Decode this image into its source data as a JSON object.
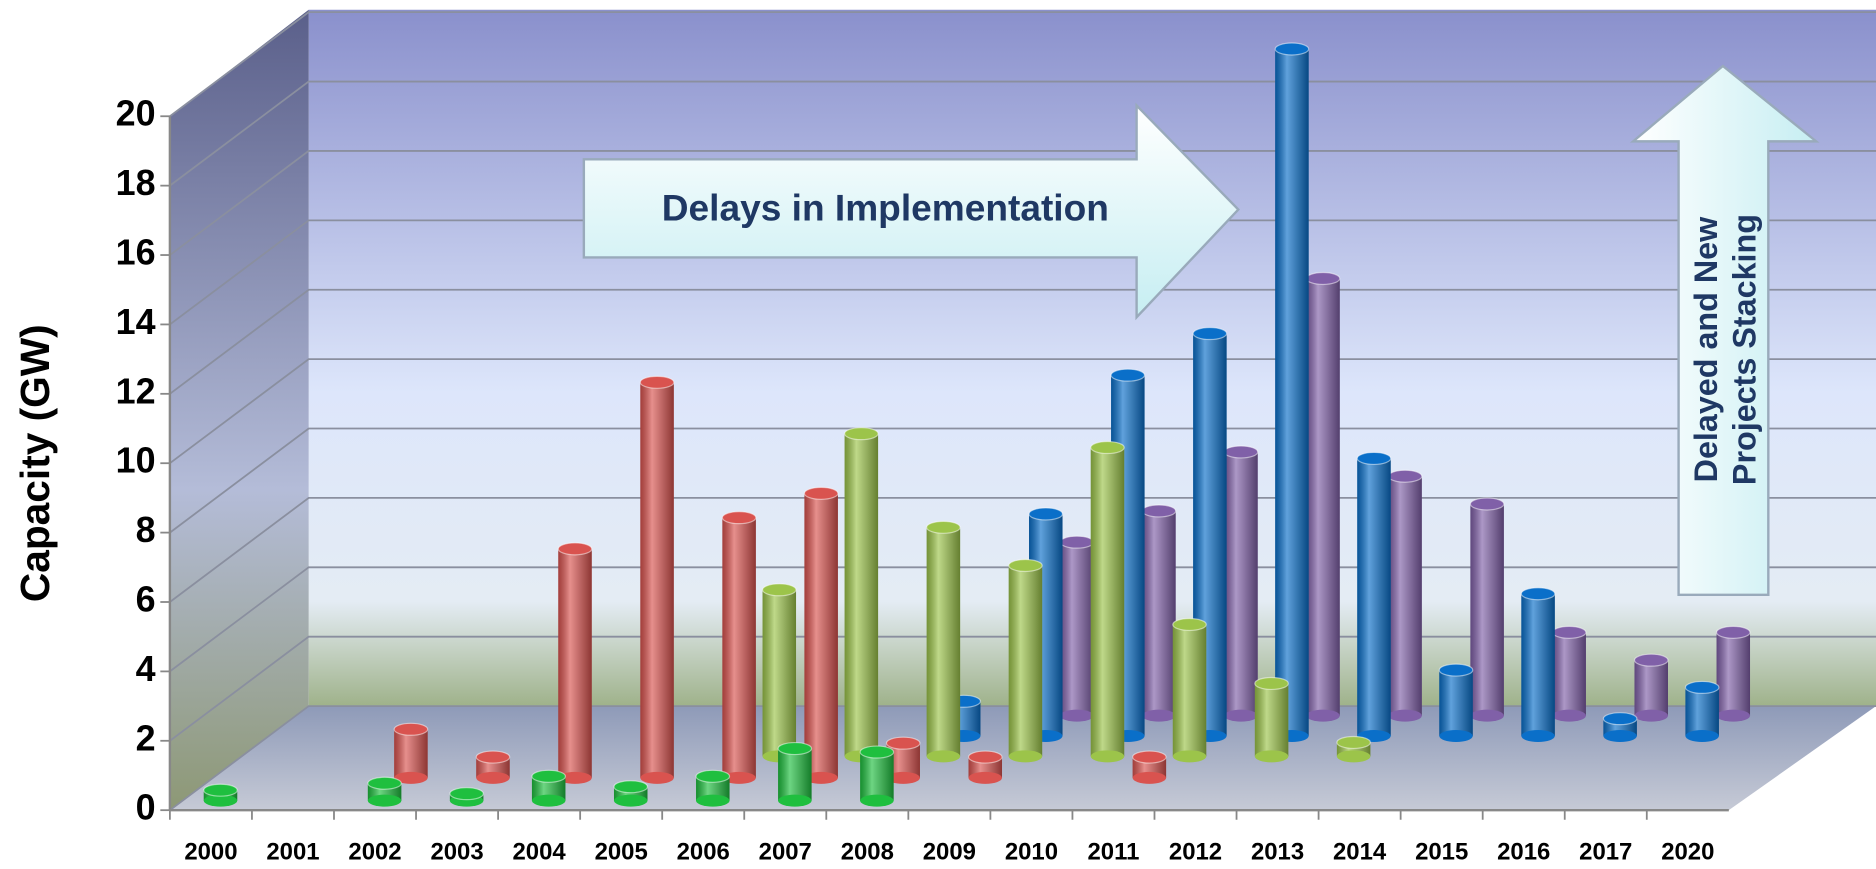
{
  "chart_data": {
    "type": "bar3d",
    "y_label": "Capacity (GW)",
    "categories": [
      "2000",
      "2001",
      "2002",
      "2003",
      "2004",
      "2005",
      "2006",
      "2007",
      "2008",
      "2009",
      "2010",
      "2011",
      "2012",
      "2013",
      "2014",
      "2015",
      "2016",
      "2017",
      "2020"
    ],
    "series": [
      {
        "color": "#1fbf3f",
        "values": [
          0.3,
          null,
          0.5,
          0.2,
          0.7,
          0.4,
          0.7,
          1.5,
          1.4,
          null,
          null,
          null,
          null,
          null,
          null,
          null,
          null,
          null,
          null
        ]
      },
      {
        "color": "#d9534f",
        "values": [
          null,
          null,
          1.4,
          0.6,
          6.6,
          11.4,
          7.5,
          8.2,
          1.0,
          0.6,
          null,
          0.6,
          null,
          null,
          null,
          null,
          null,
          null,
          null
        ]
      },
      {
        "color": "#9cc44a",
        "values": [
          null,
          null,
          null,
          null,
          null,
          null,
          null,
          4.8,
          9.3,
          6.6,
          5.5,
          8.9,
          3.8,
          2.1,
          0.4,
          null,
          null,
          null,
          null
        ]
      },
      {
        "color": "#0a6fc9",
        "values": [
          null,
          null,
          null,
          null,
          null,
          null,
          null,
          null,
          null,
          1.0,
          6.4,
          10.4,
          11.6,
          19.8,
          8.0,
          1.9,
          4.1,
          0.5,
          1.4
        ]
      },
      {
        "color": "#8060a8",
        "values": [
          null,
          null,
          null,
          null,
          null,
          null,
          null,
          null,
          null,
          null,
          5.0,
          5.9,
          7.6,
          12.6,
          6.9,
          6.1,
          2.4,
          1.6,
          2.4
        ]
      }
    ],
    "ylim": [
      0,
      20
    ],
    "yticks": [
      0,
      2,
      4,
      6,
      8,
      10,
      12,
      14,
      16,
      18,
      20
    ],
    "grid": true,
    "annotations": [
      {
        "text": "Delays in Implementation"
      },
      {
        "lines": [
          "Delayed and New",
          "Projects Stacking"
        ]
      }
    ]
  }
}
